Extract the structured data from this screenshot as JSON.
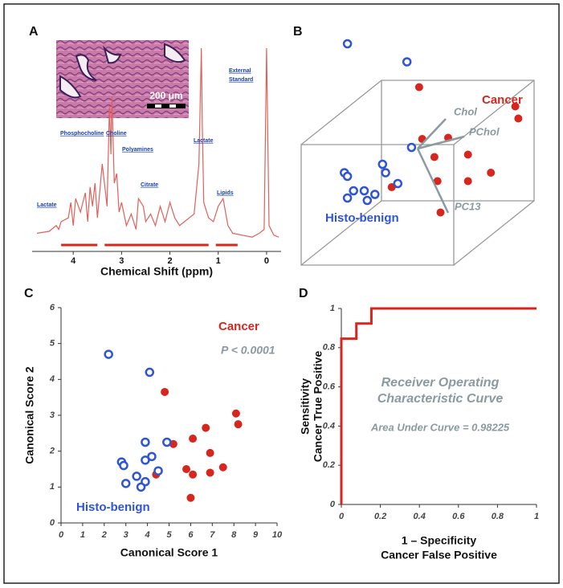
{
  "chart_data": [
    {
      "panel": "A",
      "type": "spectrum",
      "x_label": "Chemical Shift (ppm)",
      "color": "#e0605a",
      "xlim": [
        4.85,
        -0.3
      ],
      "xticks": [
        4,
        3,
        2,
        1,
        0
      ],
      "x": [
        4.75,
        4.5,
        4.35,
        4.3,
        4.25,
        4.1,
        4.05,
        4.0,
        3.95,
        3.85,
        3.75,
        3.7,
        3.65,
        3.6,
        3.55,
        3.5,
        3.4,
        3.3,
        3.25,
        3.22,
        3.2,
        3.15,
        3.1,
        3.05,
        3.0,
        2.9,
        2.8,
        2.7,
        2.65,
        2.55,
        2.5,
        2.4,
        2.3,
        2.2,
        2.1,
        2.0,
        1.9,
        1.8,
        1.7,
        1.6,
        1.5,
        1.4,
        1.35,
        1.33,
        1.3,
        1.2,
        1.1,
        1.0,
        0.9,
        0.85,
        0.8,
        0.7,
        0.5,
        0.3,
        0.15,
        0.05,
        0.0,
        -0.05,
        -0.15,
        -0.25
      ],
      "values": [
        4,
        5,
        8,
        6,
        10,
        12,
        20,
        8,
        22,
        15,
        25,
        10,
        28,
        18,
        30,
        12,
        40,
        18,
        70,
        45,
        75,
        30,
        35,
        15,
        20,
        8,
        14,
        6,
        22,
        18,
        10,
        14,
        8,
        18,
        10,
        20,
        12,
        8,
        10,
        12,
        14,
        40,
        100,
        60,
        20,
        12,
        10,
        18,
        22,
        15,
        8,
        4,
        3,
        2,
        4,
        6,
        100,
        8,
        3,
        2
      ],
      "annotations": [
        "Lactate",
        "Phosphocholine",
        "Choline",
        "Polyamines",
        "Citrate",
        "Lactate",
        "Lipids",
        "External",
        "Standard"
      ],
      "scale_bar": "200 μm"
    },
    {
      "panel": "B",
      "type": "scatter3d",
      "series": [
        {
          "name": "Cancer",
          "color": "#d7261e",
          "marker": "filled",
          "x": [
            0.51,
            1.14,
            1.16,
            0.53,
            0.7,
            0.83,
            0.61,
            0.63,
            0.83,
            0.98,
            0.33,
            0.65
          ],
          "y": [
            1.21,
            1.05,
            0.95,
            0.78,
            0.79,
            0.65,
            0.63,
            0.43,
            0.43,
            0.5,
            0.38,
            0.17
          ]
        },
        {
          "name": "Histo-benign",
          "color": "#2f55d4",
          "marker": "open",
          "x": [
            0.04,
            0.43,
            0.46,
            0.02,
            0.04,
            0.27,
            0.29,
            0.37,
            0.08,
            0.15,
            0.22,
            0.17,
            0.04
          ],
          "y": [
            1.57,
            1.42,
            0.71,
            0.5,
            0.47,
            0.57,
            0.5,
            0.41,
            0.35,
            0.35,
            0.32,
            0.27,
            0.29
          ]
        }
      ],
      "vectors": [
        "Chol",
        "PChol",
        "PC13"
      ]
    },
    {
      "panel": "C",
      "type": "scatter",
      "x_label": "Canonical Score 1",
      "y_label": "Canonical Score 2",
      "xlim": [
        0,
        10
      ],
      "ylim": [
        0,
        6
      ],
      "xticks": [
        0,
        1,
        2,
        3,
        4,
        5,
        6,
        7,
        8,
        9,
        10
      ],
      "yticks": [
        0,
        1,
        2,
        3,
        4,
        5,
        6
      ],
      "annotation": "P < 0.0001",
      "series": [
        {
          "name": "Cancer",
          "color": "#d7261e",
          "marker": "filled",
          "x": [
            4.8,
            8.1,
            8.2,
            6.7,
            6.1,
            5.2,
            6.9,
            5.8,
            7.5,
            6.9,
            6.1,
            4.4,
            6.0
          ],
          "y": [
            3.65,
            3.05,
            2.75,
            2.65,
            2.35,
            2.2,
            1.95,
            1.5,
            1.55,
            1.4,
            1.35,
            1.35,
            0.7
          ]
        },
        {
          "name": "Histo-benign",
          "color": "#2f55d4",
          "marker": "open",
          "x": [
            2.2,
            4.1,
            4.9,
            3.9,
            2.8,
            2.9,
            3.9,
            4.2,
            4.5,
            3.5,
            3.9,
            3.0,
            3.7
          ],
          "y": [
            4.7,
            4.2,
            2.25,
            2.25,
            1.7,
            1.6,
            1.75,
            1.85,
            1.45,
            1.3,
            1.15,
            1.1,
            1.0
          ]
        }
      ]
    },
    {
      "panel": "D",
      "type": "line",
      "x_label": [
        "1 – Specificity",
        "Cancer False Positive"
      ],
      "y_label": [
        "Sensitivity",
        "Cancer True Positive"
      ],
      "xlim": [
        0,
        1
      ],
      "ylim": [
        0,
        1
      ],
      "xticks": [
        0,
        0.2,
        0.4,
        0.6,
        0.8,
        1
      ],
      "yticks": [
        0,
        0.2,
        0.4,
        0.6,
        0.8,
        1
      ],
      "annotations": [
        "Receiver Operating",
        "Characteristic Curve",
        "Area Under Curve = 0.98225"
      ],
      "series": [
        {
          "color": "#d7261e",
          "x": [
            0,
            0,
            0.077,
            0.077,
            0.154,
            0.154,
            1
          ],
          "values": [
            0,
            0.846,
            0.846,
            0.923,
            0.923,
            1,
            1
          ]
        }
      ]
    }
  ]
}
